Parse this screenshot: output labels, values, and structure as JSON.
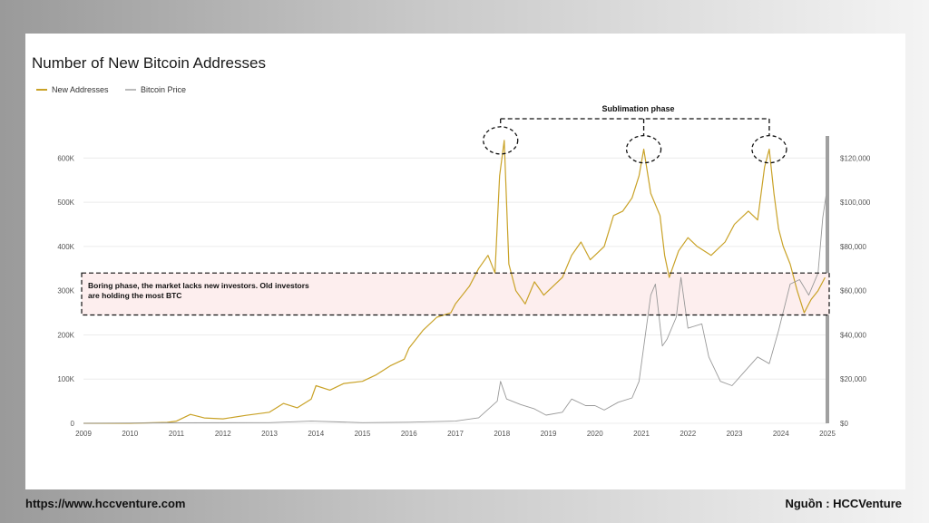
{
  "footer": {
    "website": "https://www.hccventure.com",
    "source": "Nguồn : HCCVenture"
  },
  "chart_data": {
    "type": "line",
    "title": "Number of New Bitcoin Addresses",
    "legend_position": "top-left",
    "grid": true,
    "x_ticks": [
      "2009",
      "2010",
      "2011",
      "2012",
      "2013",
      "2014",
      "2015",
      "2016",
      "2017",
      "2018",
      "2019",
      "2020",
      "2021",
      "2022",
      "2023",
      "2024",
      "2025"
    ],
    "xlim": [
      2009,
      2025
    ],
    "y_left": {
      "ticks": [
        0,
        100000,
        200000,
        300000,
        400000,
        500000,
        600000
      ],
      "tick_labels": [
        "0",
        "100K",
        "200K",
        "300K",
        "400K",
        "500K",
        "600K"
      ],
      "ylim": [
        0,
        650000
      ]
    },
    "y_right": {
      "ticks": [
        0,
        20000,
        40000,
        60000,
        80000,
        100000,
        120000
      ],
      "tick_labels": [
        "$0",
        "$20,000",
        "$40,000",
        "$60,000",
        "$80,000",
        "$100,000",
        "$120,000"
      ],
      "ylim": [
        0,
        130000
      ]
    },
    "series": [
      {
        "name": "New Addresses",
        "color": "#c9a227",
        "axis": "left",
        "x": [
          2009.0,
          2010.0,
          2010.8,
          2011.0,
          2011.3,
          2011.6,
          2012.0,
          2012.5,
          2013.0,
          2013.3,
          2013.6,
          2013.9,
          2014.0,
          2014.3,
          2014.6,
          2015.0,
          2015.3,
          2015.6,
          2015.9,
          2016.0,
          2016.3,
          2016.6,
          2016.9,
          2017.0,
          2017.3,
          2017.5,
          2017.7,
          2017.85,
          2017.95,
          2018.05,
          2018.15,
          2018.3,
          2018.5,
          2018.7,
          2018.9,
          2019.0,
          2019.3,
          2019.5,
          2019.7,
          2019.9,
          2020.0,
          2020.2,
          2020.4,
          2020.6,
          2020.8,
          2020.95,
          2021.05,
          2021.2,
          2021.4,
          2021.5,
          2021.6,
          2021.8,
          2022.0,
          2022.2,
          2022.5,
          2022.8,
          2023.0,
          2023.3,
          2023.5,
          2023.65,
          2023.75,
          2023.85,
          2023.95,
          2024.05,
          2024.2,
          2024.35,
          2024.5,
          2024.65,
          2024.8,
          2024.95
        ],
        "values": [
          0,
          0,
          2000,
          5000,
          20000,
          12000,
          10000,
          18000,
          25000,
          45000,
          35000,
          55000,
          85000,
          75000,
          90000,
          95000,
          110000,
          130000,
          145000,
          170000,
          210000,
          240000,
          250000,
          270000,
          310000,
          350000,
          380000,
          340000,
          560000,
          640000,
          360000,
          300000,
          270000,
          320000,
          290000,
          300000,
          330000,
          380000,
          410000,
          370000,
          380000,
          400000,
          470000,
          480000,
          510000,
          560000,
          620000,
          520000,
          470000,
          380000,
          330000,
          390000,
          420000,
          400000,
          380000,
          410000,
          450000,
          480000,
          460000,
          580000,
          620000,
          520000,
          440000,
          400000,
          360000,
          300000,
          250000,
          280000,
          300000,
          330000
        ]
      },
      {
        "name": "Bitcoin Price",
        "color": "#999999",
        "axis": "right",
        "x": [
          2009.0,
          2011.0,
          2013.0,
          2013.9,
          2014.5,
          2015.0,
          2016.0,
          2017.0,
          2017.5,
          2017.9,
          2017.97,
          2018.1,
          2018.4,
          2018.7,
          2018.95,
          2019.3,
          2019.5,
          2019.8,
          2020.0,
          2020.2,
          2020.5,
          2020.8,
          2020.95,
          2021.2,
          2021.3,
          2021.45,
          2021.55,
          2021.75,
          2021.85,
          2022.0,
          2022.3,
          2022.45,
          2022.7,
          2022.95,
          2023.2,
          2023.5,
          2023.75,
          2023.95,
          2024.2,
          2024.4,
          2024.6,
          2024.8,
          2024.9,
          2024.97
        ],
        "values": [
          0,
          200,
          300,
          1000,
          600,
          300,
          500,
          1000,
          2500,
          10000,
          19000,
          11000,
          8500,
          6500,
          3700,
          5000,
          11000,
          8000,
          8000,
          6000,
          9500,
          11500,
          19000,
          58000,
          63000,
          35000,
          38000,
          48000,
          66000,
          43000,
          45000,
          30000,
          19000,
          17000,
          23000,
          30000,
          27000,
          42000,
          63000,
          65000,
          58000,
          68000,
          93000,
          103000
        ]
      }
    ],
    "annotations": [
      {
        "type": "box",
        "text": "Boring phase, the market lacks new investors. Old investors are holding the most BTC",
        "y_range": [
          245000,
          340000
        ]
      },
      {
        "type": "bracket",
        "text": "Sublimation phase"
      },
      {
        "type": "circles",
        "x": [
          2017.97,
          2021.05,
          2023.75
        ]
      }
    ]
  }
}
